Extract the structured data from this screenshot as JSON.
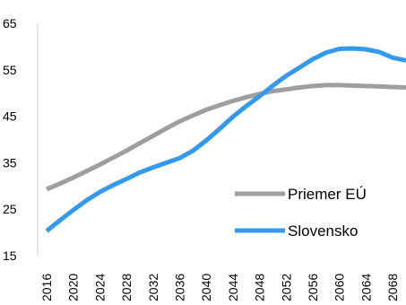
{
  "chart_data": {
    "type": "line",
    "title": "",
    "xlabel": "",
    "ylabel": "",
    "ylim": [
      15,
      65
    ],
    "yticks": [
      15,
      25,
      35,
      45,
      55,
      65
    ],
    "xlim": [
      2016,
      2070
    ],
    "xticks": [
      2016,
      2020,
      2024,
      2028,
      2032,
      2036,
      2040,
      2044,
      2048,
      2052,
      2056,
      2060,
      2064,
      2068
    ],
    "grid": false,
    "legend_position": "bottom-right",
    "series": [
      {
        "name": "Priemer EÚ",
        "color": "#9e9e9e",
        "x": [
          2016,
          2018,
          2020,
          2022,
          2024,
          2026,
          2028,
          2030,
          2032,
          2034,
          2036,
          2038,
          2040,
          2042,
          2044,
          2046,
          2048,
          2050,
          2052,
          2054,
          2056,
          2058,
          2060,
          2062,
          2064,
          2066,
          2068,
          2070
        ],
        "y": [
          29.3,
          30.5,
          31.8,
          33.2,
          34.6,
          36.1,
          37.6,
          39.2,
          40.8,
          42.4,
          43.9,
          45.2,
          46.4,
          47.4,
          48.3,
          49.1,
          49.8,
          50.4,
          50.8,
          51.2,
          51.5,
          51.7,
          51.7,
          51.6,
          51.5,
          51.4,
          51.3,
          51.2
        ]
      },
      {
        "name": "Slovensko",
        "color": "#3399ee",
        "x": [
          2016,
          2018,
          2020,
          2022,
          2024,
          2026,
          2028,
          2030,
          2032,
          2034,
          2036,
          2038,
          2040,
          2042,
          2044,
          2046,
          2048,
          2050,
          2052,
          2054,
          2056,
          2058,
          2060,
          2062,
          2064,
          2066,
          2068,
          2070
        ],
        "y": [
          20.3,
          22.6,
          24.8,
          26.9,
          28.7,
          30.2,
          31.5,
          32.9,
          34.0,
          35.0,
          36.0,
          37.6,
          39.8,
          42.3,
          44.9,
          47.2,
          49.3,
          51.6,
          53.7,
          55.5,
          57.3,
          58.7,
          59.5,
          59.6,
          59.4,
          58.8,
          57.6,
          57.0
        ]
      }
    ]
  }
}
